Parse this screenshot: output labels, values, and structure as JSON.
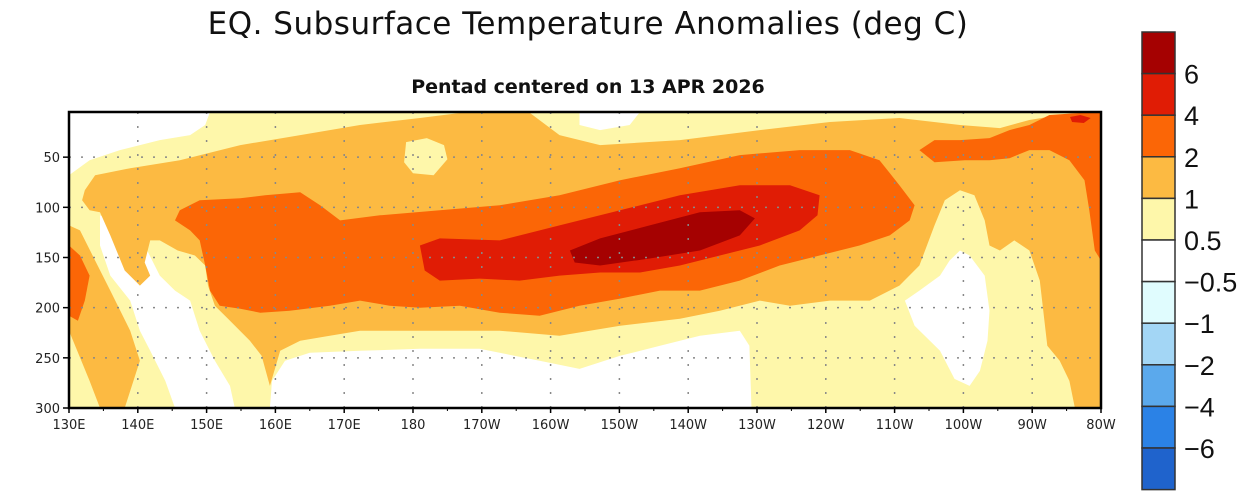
{
  "chart_data": {
    "type": "contour",
    "title": "EQ. Subsurface Temperature Anomalies (deg C)",
    "subtitle": "Pentad centered on 13 APR 2026",
    "xlabel": "",
    "ylabel": "",
    "xlim": [
      130,
      280
    ],
    "ylim": [
      300,
      5
    ],
    "x_ticks": [
      130,
      140,
      150,
      160,
      170,
      180,
      190,
      200,
      210,
      220,
      230,
      240,
      250,
      260,
      270,
      280
    ],
    "x_tick_labels": [
      "130E",
      "140E",
      "150E",
      "160E",
      "170E",
      "180",
      "170W",
      "160W",
      "150W",
      "140W",
      "130W",
      "120W",
      "110W",
      "100W",
      "90W",
      "80W"
    ],
    "y_ticks": [
      50,
      100,
      150,
      200,
      250,
      300
    ],
    "y_tick_labels": [
      "50",
      "100",
      "150",
      "200",
      "250",
      "300"
    ],
    "grid": true,
    "colorbar": {
      "placement": "right",
      "labels": [
        "6",
        "4",
        "2",
        "1",
        "0.5",
        "−0.5",
        "−1",
        "−2",
        "−4",
        "−6"
      ],
      "colors": [
        "#a50101",
        "#e01c05",
        "#fb6606",
        "#fcba42",
        "#fef7aa",
        "#ffffff",
        "#e0fcfe",
        "#a3d6f5",
        "#5ba9ec",
        "#2b82e6",
        "#1f63cc"
      ]
    },
    "background_level": "0.5 to 1",
    "regions": [
      {
        "level": "-0.5 to 0.5",
        "color": "#ffffff",
        "points": [
          [
            130,
            5
          ],
          [
            150.5,
            5
          ],
          [
            149.8,
            18
          ],
          [
            147.6,
            28
          ],
          [
            143.2,
            33
          ],
          [
            137.4,
            43
          ],
          [
            133,
            53
          ],
          [
            130,
            68
          ]
        ]
      },
      {
        "level": "-0.5 to 0.5",
        "color": "#ffffff",
        "points": [
          [
            134.5,
            108
          ],
          [
            137.4,
            118
          ],
          [
            141,
            138
          ],
          [
            143.2,
            168
          ],
          [
            145.4,
            183
          ],
          [
            147.6,
            193
          ],
          [
            149,
            223
          ],
          [
            151.2,
            253
          ],
          [
            153.4,
            278
          ],
          [
            154.1,
            300
          ],
          [
            145.4,
            300
          ],
          [
            144,
            273
          ],
          [
            141.8,
            243
          ],
          [
            140.3,
            223
          ],
          [
            138.9,
            193
          ],
          [
            136,
            168
          ],
          [
            134.5,
            138
          ]
        ]
      },
      {
        "level": "-0.5 to 0.5",
        "color": "#ffffff",
        "points": [
          [
            159.2,
            300
          ],
          [
            159.5,
            273
          ],
          [
            161.4,
            253
          ],
          [
            165,
            245
          ],
          [
            172.3,
            243
          ],
          [
            181,
            241
          ],
          [
            189.7,
            241
          ],
          [
            198.4,
            253
          ],
          [
            204.2,
            261
          ],
          [
            210.1,
            248
          ],
          [
            215.9,
            238
          ],
          [
            221.7,
            228
          ],
          [
            227.5,
            223
          ],
          [
            228.9,
            238
          ],
          [
            229.2,
            300
          ]
        ]
      },
      {
        "level": "-0.5 to 0.5",
        "color": "#ffffff",
        "points": [
          [
            258,
            153
          ],
          [
            259.5,
            143
          ],
          [
            260.9,
            148
          ],
          [
            263.1,
            168
          ],
          [
            263.8,
            203
          ],
          [
            263.5,
            233
          ],
          [
            262.4,
            263
          ],
          [
            260.9,
            278
          ],
          [
            258.7,
            271
          ],
          [
            256.6,
            243
          ],
          [
            252.9,
            218
          ],
          [
            251.5,
            193
          ],
          [
            253.6,
            183
          ],
          [
            256.6,
            168
          ]
        ]
      },
      {
        "level": "-0.5 to 0.5",
        "color": "#ffffff",
        "points": [
          [
            204.2,
            5
          ],
          [
            213,
            5
          ],
          [
            211.5,
            18
          ],
          [
            207.2,
            23
          ],
          [
            204.2,
            18
          ]
        ]
      },
      {
        "level": "1 to 2",
        "color": "#fcba42",
        "points": [
          [
            132.3,
            83
          ],
          [
            133.8,
            68
          ],
          [
            138.9,
            61
          ],
          [
            146.1,
            53
          ],
          [
            154.9,
            38
          ],
          [
            163.6,
            28
          ],
          [
            172.3,
            18
          ],
          [
            181,
            11
          ],
          [
            186.8,
            6
          ],
          [
            197,
            6
          ],
          [
            201.3,
            28
          ],
          [
            207.2,
            38
          ],
          [
            218.8,
            33
          ],
          [
            230.4,
            23
          ],
          [
            240.6,
            15
          ],
          [
            250.7,
            11
          ],
          [
            259.5,
            18
          ],
          [
            265.3,
            21
          ],
          [
            269.6,
            13
          ],
          [
            274,
            8
          ],
          [
            280,
            5
          ],
          [
            280,
            300
          ],
          [
            276.2,
            300
          ],
          [
            275.4,
            273
          ],
          [
            274,
            253
          ],
          [
            272.2,
            238
          ],
          [
            271.1,
            173
          ],
          [
            269.6,
            143
          ],
          [
            267.4,
            133
          ],
          [
            265.3,
            143
          ],
          [
            263.8,
            138
          ],
          [
            263.1,
            113
          ],
          [
            261.6,
            88
          ],
          [
            259.5,
            83
          ],
          [
            257.3,
            93
          ],
          [
            255.8,
            118
          ],
          [
            253.6,
            158
          ],
          [
            250.7,
            178
          ],
          [
            246.4,
            193
          ],
          [
            240.6,
            193
          ],
          [
            234.8,
            198
          ],
          [
            230.4,
            193
          ],
          [
            224.6,
            203
          ],
          [
            218.8,
            211
          ],
          [
            210.1,
            218
          ],
          [
            201.3,
            228
          ],
          [
            192.6,
            223
          ],
          [
            186.8,
            223
          ],
          [
            178.1,
            223
          ],
          [
            172.3,
            223
          ],
          [
            167.9,
            228
          ],
          [
            163.6,
            233
          ],
          [
            160.7,
            243
          ],
          [
            159.2,
            278
          ],
          [
            158,
            248
          ],
          [
            156.3,
            233
          ],
          [
            153.4,
            213
          ],
          [
            151.2,
            198
          ],
          [
            150.2,
            178
          ],
          [
            149.8,
            158
          ],
          [
            148.3,
            148
          ],
          [
            145.8,
            143
          ],
          [
            143.2,
            133
          ],
          [
            141.8,
            133
          ],
          [
            141,
            155
          ],
          [
            141.8,
            168
          ],
          [
            140.3,
            178
          ],
          [
            138.1,
            163
          ],
          [
            136,
            128
          ],
          [
            134.5,
            105
          ],
          [
            133,
            103
          ],
          [
            131.9,
            93
          ]
        ]
      },
      {
        "level": "1 to 2",
        "color": "#fcba42",
        "points": [
          [
            130,
            118
          ],
          [
            131.6,
            123
          ],
          [
            133.8,
            153
          ],
          [
            136,
            183
          ],
          [
            138.9,
            223
          ],
          [
            140.3,
            253
          ],
          [
            138.1,
            300
          ],
          [
            134.5,
            300
          ],
          [
            133,
            273
          ],
          [
            130,
            223
          ]
        ]
      },
      {
        "level": "0.5 to 1",
        "color": "#fef7aa",
        "points": [
          [
            179,
            35
          ],
          [
            182,
            31
          ],
          [
            184.5,
            38
          ],
          [
            185,
            52
          ],
          [
            183,
            68
          ],
          [
            180,
            66
          ],
          [
            178.7,
            55
          ]
        ]
      },
      {
        "level": "2 to 4",
        "color": "#fb6606",
        "points": [
          [
            145.4,
            113
          ],
          [
            146.1,
            103
          ],
          [
            149,
            93
          ],
          [
            154.9,
            91
          ],
          [
            158.5,
            88
          ],
          [
            163.6,
            85
          ],
          [
            166.5,
            98
          ],
          [
            169.4,
            113
          ],
          [
            175.2,
            108
          ],
          [
            183.9,
            103
          ],
          [
            192.6,
            98
          ],
          [
            201.3,
            88
          ],
          [
            210.1,
            73
          ],
          [
            218.8,
            61
          ],
          [
            227.5,
            48
          ],
          [
            236.2,
            43
          ],
          [
            243.5,
            43
          ],
          [
            247.8,
            53
          ],
          [
            250.7,
            78
          ],
          [
            252.9,
            98
          ],
          [
            252.2,
            113
          ],
          [
            249.3,
            128
          ],
          [
            244.9,
            138
          ],
          [
            239.1,
            148
          ],
          [
            233.3,
            158
          ],
          [
            227.5,
            173
          ],
          [
            221.7,
            183
          ],
          [
            215.9,
            183
          ],
          [
            210.1,
            191
          ],
          [
            204.2,
            198
          ],
          [
            198.4,
            208
          ],
          [
            192.6,
            205
          ],
          [
            186.8,
            198
          ],
          [
            181,
            200
          ],
          [
            176.6,
            198
          ],
          [
            172.3,
            193
          ],
          [
            167.9,
            198
          ],
          [
            162.1,
            203
          ],
          [
            157.8,
            205
          ],
          [
            154.9,
            201
          ],
          [
            151.9,
            198
          ],
          [
            150.5,
            183
          ],
          [
            149.8,
            158
          ],
          [
            149,
            133
          ],
          [
            147.6,
            123
          ]
        ]
      },
      {
        "level": "2 to 4",
        "color": "#fb6606",
        "points": [
          [
            130,
            138
          ],
          [
            131.6,
            148
          ],
          [
            133,
            168
          ],
          [
            132.3,
            193
          ],
          [
            131.3,
            213
          ],
          [
            130,
            208
          ]
        ]
      },
      {
        "level": "2 to 4",
        "color": "#fb6606",
        "points": [
          [
            253.6,
            43
          ],
          [
            255.8,
            33
          ],
          [
            259.5,
            33
          ],
          [
            263.8,
            31
          ],
          [
            266.7,
            23
          ],
          [
            269.6,
            18
          ],
          [
            272.5,
            8
          ],
          [
            279,
            5
          ],
          [
            280,
            5
          ],
          [
            280,
            153
          ],
          [
            279.1,
            143
          ],
          [
            278.3,
            103
          ],
          [
            277.6,
            73
          ],
          [
            275.4,
            53
          ],
          [
            272.5,
            43
          ],
          [
            269.6,
            43
          ],
          [
            266.7,
            51
          ],
          [
            263.8,
            53
          ],
          [
            260.2,
            53
          ],
          [
            255.8,
            55
          ]
        ]
      },
      {
        "level": "4 to 6",
        "color": "#e01c05",
        "points": [
          [
            181,
            138
          ],
          [
            183.9,
            131
          ],
          [
            192.6,
            133
          ],
          [
            201.3,
            118
          ],
          [
            210.1,
            103
          ],
          [
            218.8,
            88
          ],
          [
            227.5,
            78
          ],
          [
            234.8,
            78
          ],
          [
            239.1,
            88
          ],
          [
            238.8,
            108
          ],
          [
            236.2,
            123
          ],
          [
            230.4,
            138
          ],
          [
            224.6,
            148
          ],
          [
            218.8,
            158
          ],
          [
            213,
            165
          ],
          [
            207.2,
            165
          ],
          [
            201.3,
            168
          ],
          [
            195.5,
            173
          ],
          [
            189.7,
            171
          ],
          [
            183.9,
            173
          ],
          [
            181.7,
            163
          ]
        ]
      },
      {
        "level": "4 to 6",
        "color": "#e01c05",
        "points": [
          [
            275.5,
            10
          ],
          [
            277,
            8
          ],
          [
            278.5,
            11
          ],
          [
            277.5,
            16
          ],
          [
            275.8,
            15
          ]
        ]
      },
      {
        "level": ">6",
        "color": "#a50101",
        "points": [
          [
            202.8,
            143
          ],
          [
            207.2,
            131
          ],
          [
            214.4,
            118
          ],
          [
            221.7,
            105
          ],
          [
            227.5,
            103
          ],
          [
            229.7,
            111
          ],
          [
            227.5,
            128
          ],
          [
            221.7,
            143
          ],
          [
            214.4,
            151
          ],
          [
            207.2,
            158
          ],
          [
            203.5,
            155
          ]
        ]
      }
    ]
  }
}
